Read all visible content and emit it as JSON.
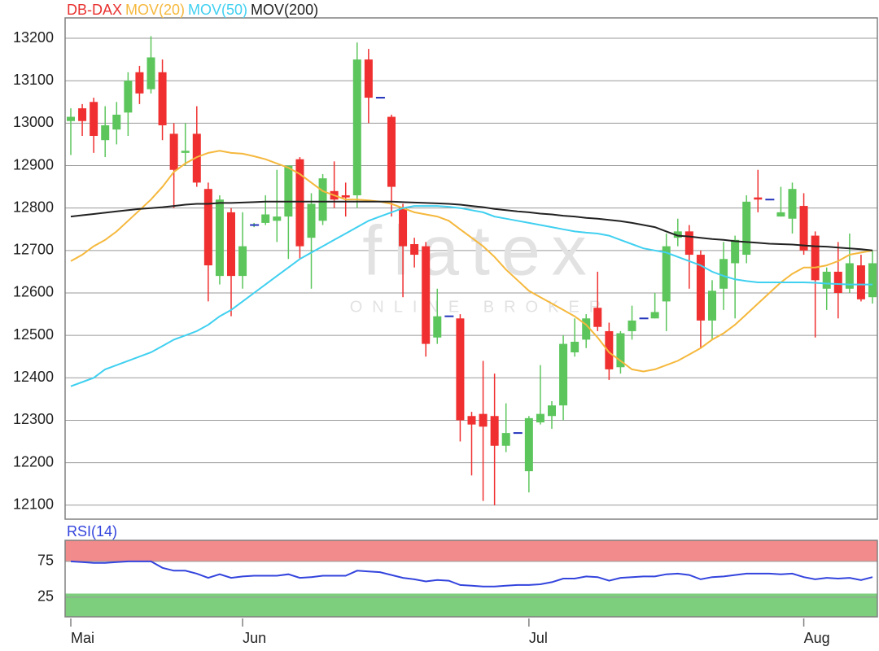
{
  "chart_data": [
    {
      "type": "candlestick",
      "watermark": "flatex",
      "watermark_subtitle": "ONLINE BROKER",
      "categories": [
        "Mai",
        null,
        null,
        null,
        null,
        null,
        null,
        null,
        null,
        null,
        null,
        null,
        null,
        null,
        null,
        "Jun",
        null,
        null,
        null,
        null,
        null,
        null,
        null,
        null,
        null,
        null,
        null,
        null,
        null,
        null,
        null,
        null,
        null,
        null,
        null,
        null,
        null,
        null,
        null,
        null,
        "Jul",
        null,
        null,
        null,
        null,
        null,
        null,
        null,
        null,
        null,
        null,
        null,
        null,
        null,
        null,
        null,
        null,
        null,
        null,
        null,
        null,
        null,
        null,
        null,
        "Aug",
        null,
        null,
        null,
        null,
        null,
        null
      ],
      "ylim": [
        12067,
        13248
      ],
      "yticks": [
        12100,
        12200,
        12300,
        12400,
        12500,
        12600,
        12700,
        12800,
        12900,
        13000,
        13100,
        13200
      ],
      "grid": true,
      "series": [
        {
          "name": "DB-DAX",
          "color": "#e8312f",
          "up_color": "#5cc65c",
          "down_color": "#f03030",
          "flat_color": "#2233bb",
          "open": [
            13005,
            13035,
            13050,
            12960,
            12985,
            13025,
            13120,
            13080,
            13120,
            12975,
            12930,
            12975,
            12845,
            12640,
            12790,
            12640,
            12760,
            12765,
            12770,
            12780,
            12915,
            12730,
            12770,
            12840,
            12830,
            12830,
            13150,
            13060,
            13015,
            12800,
            12715,
            12710,
            12495,
            12545,
            12540,
            12310,
            12315,
            12310,
            12240,
            12270,
            12180,
            12295,
            12310,
            12335,
            12460,
            12490,
            12565,
            12510,
            12425,
            12510,
            12540,
            12540,
            12580,
            12730,
            12745,
            12690,
            12535,
            12610,
            12670,
            12690,
            12825,
            12820,
            12780,
            12775,
            12805,
            12735,
            12610,
            12650,
            12610,
            12665,
            12590
          ],
          "high": [
            13035,
            13045,
            13060,
            13040,
            13050,
            13120,
            13135,
            13205,
            13150,
            13000,
            13000,
            13040,
            12860,
            12830,
            12800,
            12790,
            12765,
            12830,
            12890,
            12900,
            12920,
            12835,
            12880,
            12910,
            12860,
            13190,
            13175,
            13060,
            13020,
            12810,
            12730,
            12720,
            12610,
            12545,
            12550,
            12320,
            12440,
            12410,
            12340,
            12270,
            12310,
            12430,
            12345,
            12500,
            12540,
            12550,
            12650,
            12530,
            12510,
            12570,
            12540,
            12600,
            12740,
            12775,
            12760,
            12700,
            12630,
            12720,
            12735,
            12830,
            12890,
            12820,
            12850,
            12860,
            12835,
            12745,
            12660,
            12720,
            12740,
            12690,
            12700
          ],
          "low": [
            12925,
            12970,
            12930,
            12920,
            12950,
            12970,
            13045,
            13070,
            12960,
            12800,
            12900,
            12850,
            12580,
            12620,
            12545,
            12610,
            12755,
            12760,
            12720,
            12680,
            12680,
            12610,
            12760,
            12800,
            12780,
            12800,
            13000,
            13060,
            12780,
            12590,
            12660,
            12450,
            12480,
            12545,
            12250,
            12170,
            12110,
            12100,
            12225,
            12270,
            12130,
            12290,
            12280,
            12300,
            12450,
            12470,
            12510,
            12395,
            12410,
            12490,
            12540,
            12540,
            12510,
            12710,
            12610,
            12470,
            12490,
            12560,
            12540,
            12670,
            12790,
            12820,
            12780,
            12740,
            12690,
            12495,
            12560,
            12540,
            12600,
            12580,
            12575
          ],
          "close": [
            13015,
            13005,
            12970,
            12995,
            13020,
            13100,
            13070,
            13155,
            12995,
            12890,
            12935,
            12860,
            12665,
            12820,
            12640,
            12710,
            12760,
            12785,
            12780,
            12900,
            12710,
            12810,
            12870,
            12820,
            12825,
            13150,
            13060,
            13060,
            12850,
            12710,
            12690,
            12480,
            12545,
            12545,
            12300,
            12290,
            12285,
            12240,
            12270,
            12270,
            12305,
            12315,
            12335,
            12480,
            12485,
            12540,
            12520,
            12420,
            12505,
            12535,
            12540,
            12555,
            12710,
            12745,
            12690,
            12535,
            12605,
            12680,
            12725,
            12815,
            12820,
            12820,
            12790,
            12845,
            12700,
            12630,
            12650,
            12600,
            12670,
            12585,
            12670
          ]
        },
        {
          "name": "MOV(20)",
          "type": "line",
          "color": "#f5b83d",
          "values": [
            12675,
            12690,
            12710,
            12725,
            12745,
            12770,
            12795,
            12820,
            12850,
            12885,
            12905,
            12920,
            12930,
            12935,
            12930,
            12928,
            12922,
            12915,
            12905,
            12895,
            12880,
            12860,
            12840,
            12830,
            12820,
            12820,
            12818,
            12815,
            12810,
            12800,
            12790,
            12785,
            12780,
            12770,
            12750,
            12730,
            12710,
            12685,
            12655,
            12630,
            12605,
            12590,
            12575,
            12560,
            12545,
            12525,
            12495,
            12460,
            12440,
            12420,
            12415,
            12420,
            12430,
            12440,
            12455,
            12470,
            12490,
            12505,
            12525,
            12550,
            12575,
            12600,
            12625,
            12645,
            12660,
            12660,
            12665,
            12675,
            12690,
            12695,
            12700
          ]
        },
        {
          "name": "MOV(50)",
          "type": "line",
          "color": "#40d0f0",
          "values": [
            12380,
            12390,
            12400,
            12420,
            12430,
            12440,
            12450,
            12460,
            12475,
            12490,
            12500,
            12510,
            12525,
            12545,
            12560,
            12580,
            12600,
            12620,
            12640,
            12660,
            12680,
            12695,
            12710,
            12725,
            12740,
            12755,
            12770,
            12780,
            12790,
            12800,
            12805,
            12805,
            12805,
            12803,
            12800,
            12795,
            12790,
            12780,
            12775,
            12770,
            12765,
            12760,
            12755,
            12750,
            12745,
            12742,
            12740,
            12735,
            12725,
            12715,
            12705,
            12700,
            12695,
            12685,
            12675,
            12665,
            12650,
            12640,
            12632,
            12628,
            12625,
            12625,
            12625,
            12625,
            12625,
            12624,
            12622,
            12621,
            12620,
            12620,
            12620
          ]
        },
        {
          "name": "MOV(200)",
          "type": "line",
          "color": "#222222",
          "values": [
            12780,
            12783,
            12786,
            12789,
            12792,
            12795,
            12798,
            12800,
            12802,
            12805,
            12808,
            12810,
            12810,
            12812,
            12812,
            12813,
            12814,
            12815,
            12815,
            12815,
            12815,
            12815,
            12815,
            12815,
            12815,
            12815,
            12815,
            12815,
            12815,
            12814,
            12813,
            12812,
            12811,
            12810,
            12808,
            12805,
            12802,
            12798,
            12795,
            12792,
            12790,
            12787,
            12785,
            12782,
            12780,
            12777,
            12775,
            12772,
            12769,
            12765,
            12760,
            12755,
            12745,
            12735,
            12733,
            12730,
            12727,
            12725,
            12722,
            12720,
            12718,
            12716,
            12715,
            12714,
            12712,
            12710,
            12709,
            12707,
            12705,
            12703,
            12700
          ]
        }
      ]
    },
    {
      "type": "line",
      "ylim": [
        -2.5,
        104.5
      ],
      "yticks": [
        25,
        75
      ],
      "overbought": 75,
      "oversold": 30,
      "overbought_color": "#f28b8b",
      "oversold_color": "#7dcf7d",
      "series": [
        {
          "name": "RSI(14)",
          "color": "#3344dd",
          "values": [
            75,
            74,
            73,
            73,
            74,
            75,
            75,
            75,
            66,
            62,
            62,
            58,
            52,
            57,
            52,
            54,
            55,
            55,
            55,
            57,
            52,
            53,
            55,
            55,
            55,
            62,
            61,
            60,
            56,
            52,
            50,
            47,
            49,
            48,
            42,
            41,
            40,
            40,
            41,
            42,
            42,
            43,
            46,
            51,
            51,
            54,
            53,
            48,
            52,
            53,
            54,
            54,
            57,
            58,
            56,
            50,
            53,
            54,
            56,
            58,
            58,
            58,
            57,
            58,
            53,
            50,
            52,
            51,
            52,
            49,
            53
          ]
        }
      ]
    }
  ]
}
